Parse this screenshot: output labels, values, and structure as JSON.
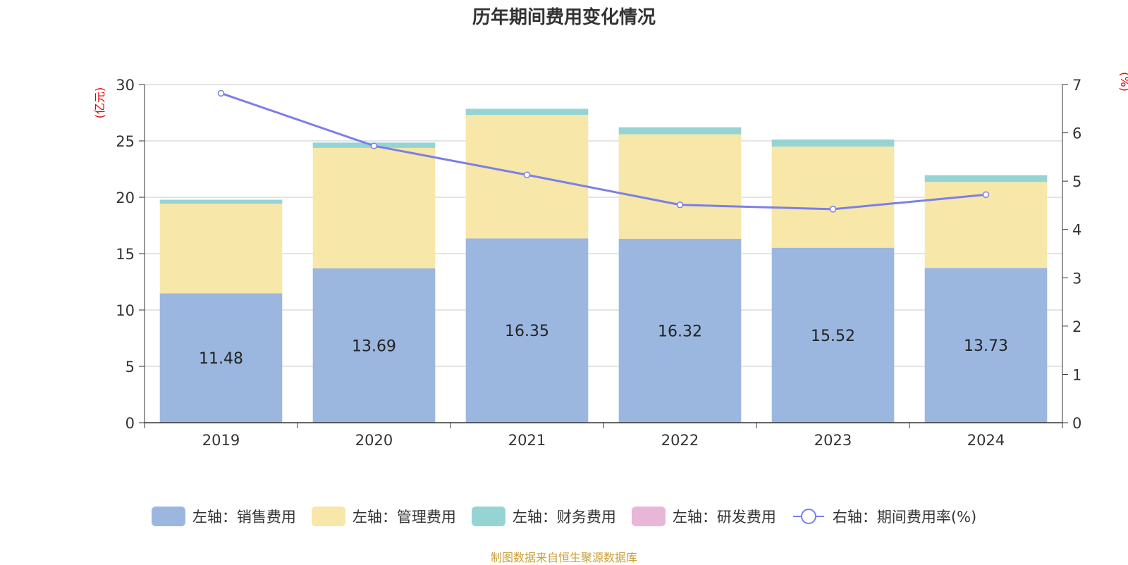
{
  "chart_data": {
    "type": "bar",
    "title": "历年期间费用变化情况",
    "categories": [
      "2019",
      "2020",
      "2021",
      "2022",
      "2023",
      "2024"
    ],
    "left_axis": {
      "unit_label": "(亿元)",
      "ylim": [
        0,
        30
      ],
      "ticks": [
        "0",
        "5",
        "10",
        "15",
        "20",
        "25",
        "30"
      ]
    },
    "right_axis": {
      "unit_label": "(%)",
      "ylim": [
        0,
        7
      ],
      "ticks": [
        "0",
        "1",
        "2",
        "3",
        "4",
        "5",
        "6",
        "7"
      ]
    },
    "series": [
      {
        "name": "左轴：销售费用",
        "kind": "bar",
        "axis": "left",
        "color": "#9bb7e0",
        "values": [
          11.48,
          13.69,
          16.35,
          16.32,
          15.52,
          13.73
        ],
        "labels": [
          "11.48",
          "13.69",
          "16.35",
          "16.32",
          "15.52",
          "13.73"
        ]
      },
      {
        "name": "左轴：管理费用",
        "kind": "bar",
        "axis": "left",
        "color": "#f7e7a8",
        "values": [
          7.95,
          10.69,
          10.95,
          9.27,
          8.98,
          7.63
        ]
      },
      {
        "name": "左轴：财务费用",
        "kind": "bar",
        "axis": "left",
        "color": "#96d4d4",
        "values": [
          0.35,
          0.47,
          0.55,
          0.62,
          0.62,
          0.6
        ]
      },
      {
        "name": "左轴：研发费用",
        "kind": "bar",
        "axis": "left",
        "color": "#e8b7d8",
        "values": [
          0,
          0,
          0,
          0,
          0,
          0
        ]
      },
      {
        "name": "右轴：期间费用率(%)",
        "kind": "line",
        "axis": "right",
        "color": "#7b7fe8",
        "values": [
          6.82,
          5.73,
          5.13,
          4.51,
          4.42,
          4.72
        ]
      }
    ],
    "grid": true,
    "legend_position": "bottom"
  },
  "source": "制图数据来自恒生聚源数据库"
}
